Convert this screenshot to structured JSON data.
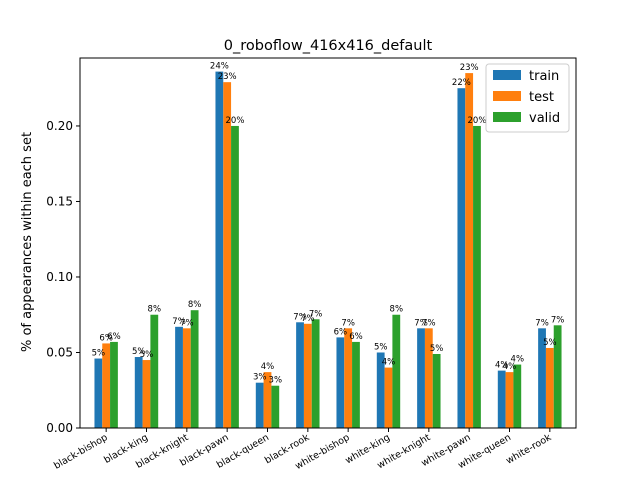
{
  "chart_data": {
    "type": "bar",
    "title": "0_roboflow_416x416_default",
    "xlabel": "",
    "ylabel": "% of appearances within each set",
    "ylim": [
      0,
      0.245
    ],
    "yticks": [
      "0.00",
      "0.05",
      "0.10",
      "0.15",
      "0.20"
    ],
    "ytick_values": [
      0,
      0.05,
      0.1,
      0.15,
      0.2
    ],
    "grid": false,
    "legend_position": "top-right",
    "categories": [
      "black-bishop",
      "black-king",
      "black-knight",
      "black-pawn",
      "black-queen",
      "black-rook",
      "white-bishop",
      "white-king",
      "white-knight",
      "white-pawn",
      "white-queen",
      "white-rook"
    ],
    "series": [
      {
        "name": "train",
        "color": "#1f77b4",
        "values": [
          0.046,
          0.047,
          0.067,
          0.236,
          0.03,
          0.07,
          0.06,
          0.05,
          0.066,
          0.225,
          0.038,
          0.066
        ],
        "labels": [
          "5%",
          "5%",
          "7%",
          "24%",
          "3%",
          "7%",
          "6%",
          "5%",
          "7%",
          "22%",
          "4%",
          "7%"
        ]
      },
      {
        "name": "test",
        "color": "#ff7f0e",
        "values": [
          0.056,
          0.045,
          0.066,
          0.229,
          0.037,
          0.069,
          0.066,
          0.04,
          0.066,
          0.235,
          0.037,
          0.053
        ],
        "labels": [
          "6%",
          "5%",
          "7%",
          "23%",
          "4%",
          "7%",
          "7%",
          "4%",
          "7%",
          "23%",
          "4%",
          "5%"
        ]
      },
      {
        "name": "valid",
        "color": "#2ca02c",
        "values": [
          0.057,
          0.075,
          0.078,
          0.2,
          0.028,
          0.072,
          0.057,
          0.075,
          0.049,
          0.2,
          0.042,
          0.068
        ],
        "labels": [
          "6%",
          "8%",
          "8%",
          "20%",
          "3%",
          "7%",
          "6%",
          "8%",
          "5%",
          "20%",
          "4%",
          "7%"
        ]
      }
    ]
  }
}
